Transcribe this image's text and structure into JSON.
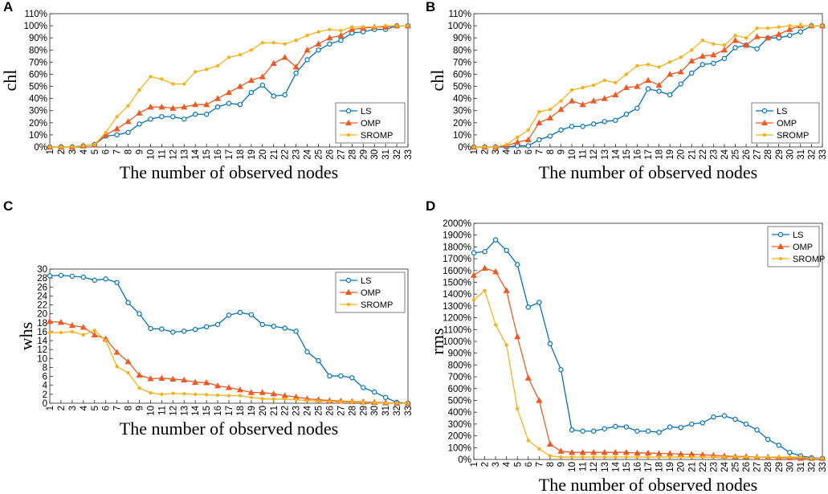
{
  "colors": {
    "LS": "#0072BD",
    "OMP": "#EE5A24",
    "SROMP": "#F5B21D"
  },
  "chart_data": [
    {
      "panel": "A",
      "type": "line",
      "xlabel": "The number of observed nodes",
      "ylabel": "chl",
      "x": [
        1,
        2,
        3,
        4,
        5,
        6,
        7,
        8,
        9,
        10,
        11,
        12,
        13,
        14,
        15,
        16,
        17,
        18,
        19,
        20,
        21,
        22,
        23,
        24,
        25,
        26,
        27,
        28,
        29,
        30,
        31,
        32,
        33
      ],
      "ylim": [
        0,
        110
      ],
      "yticks": [
        0,
        10,
        20,
        30,
        40,
        50,
        60,
        70,
        80,
        90,
        100,
        110
      ],
      "ytick_labels": [
        "0%",
        "10%",
        "20%",
        "30%",
        "40%",
        "50%",
        "60%",
        "70%",
        "80%",
        "90%",
        "100%",
        "110%"
      ],
      "legend_position": "bottom-right",
      "series": [
        {
          "name": "LS",
          "marker": "circle",
          "values": [
            0,
            0,
            0,
            1,
            2,
            9,
            10,
            12,
            19,
            23,
            25,
            25,
            23,
            27,
            27,
            33,
            36,
            35,
            45,
            51,
            42,
            43,
            61,
            72,
            80,
            85,
            88,
            94,
            95,
            97,
            97,
            100,
            100
          ]
        },
        {
          "name": "OMP",
          "marker": "triangle",
          "values": [
            0,
            0,
            0,
            1,
            2,
            10,
            15,
            21,
            28,
            33,
            33,
            32,
            33,
            35,
            35,
            40,
            45,
            50,
            55,
            58,
            69,
            74,
            66,
            80,
            85,
            90,
            92,
            97,
            98,
            99,
            99,
            100,
            100
          ]
        },
        {
          "name": "SROMP",
          "marker": "dot",
          "values": [
            0,
            0,
            0,
            1,
            2,
            12,
            25,
            34,
            47,
            58,
            56,
            52,
            52,
            62,
            64,
            67,
            74,
            76,
            80,
            86,
            86,
            85,
            88,
            92,
            95,
            97,
            96,
            99,
            99,
            99,
            100,
            100,
            100
          ]
        }
      ]
    },
    {
      "panel": "B",
      "type": "line",
      "xlabel": "The number of observed nodes",
      "ylabel": "chl",
      "x": [
        1,
        2,
        3,
        4,
        5,
        6,
        7,
        8,
        9,
        10,
        11,
        12,
        13,
        14,
        15,
        16,
        17,
        18,
        19,
        20,
        21,
        22,
        23,
        24,
        25,
        26,
        27,
        28,
        29,
        30,
        31,
        32,
        33
      ],
      "ylim": [
        0,
        110
      ],
      "yticks": [
        0,
        10,
        20,
        30,
        40,
        50,
        60,
        70,
        80,
        90,
        100,
        110
      ],
      "ytick_labels": [
        "0%",
        "10%",
        "20%",
        "30%",
        "40%",
        "50%",
        "60%",
        "70%",
        "80%",
        "90%",
        "100%",
        "110%"
      ],
      "legend_position": "bottom-right",
      "series": [
        {
          "name": "LS",
          "marker": "circle",
          "values": [
            0,
            0,
            0,
            0,
            1,
            1,
            6,
            9,
            14,
            17,
            17,
            19,
            21,
            22,
            27,
            32,
            48,
            46,
            43,
            52,
            61,
            68,
            69,
            73,
            82,
            84,
            81,
            90,
            90,
            92,
            95,
            100,
            100
          ]
        },
        {
          "name": "OMP",
          "marker": "triangle",
          "values": [
            0,
            0,
            0,
            1,
            4,
            6,
            20,
            24,
            31,
            38,
            35,
            38,
            40,
            43,
            49,
            50,
            55,
            51,
            60,
            62,
            71,
            75,
            76,
            80,
            88,
            84,
            91,
            90,
            93,
            97,
            100,
            100,
            100
          ]
        },
        {
          "name": "SROMP",
          "marker": "dot",
          "values": [
            0,
            0,
            0,
            2,
            8,
            14,
            29,
            31,
            38,
            47,
            49,
            51,
            55,
            53,
            60,
            67,
            68,
            66,
            70,
            74,
            80,
            88,
            85,
            84,
            92,
            90,
            98,
            98,
            99,
            100,
            100,
            100,
            100
          ]
        }
      ]
    },
    {
      "panel": "C",
      "type": "line",
      "xlabel": "The number of observed nodes",
      "ylabel": "whs",
      "x": [
        1,
        2,
        3,
        4,
        5,
        6,
        7,
        8,
        9,
        10,
        11,
        12,
        13,
        14,
        15,
        16,
        17,
        18,
        19,
        20,
        21,
        22,
        23,
        24,
        25,
        26,
        27,
        28,
        29,
        30,
        31,
        32,
        33
      ],
      "ylim": [
        0,
        30
      ],
      "yticks": [
        0,
        2,
        4,
        6,
        8,
        10,
        12,
        14,
        16,
        18,
        20,
        22,
        24,
        26,
        28,
        30
      ],
      "ytick_labels": [
        "0",
        "2",
        "4",
        "6",
        "8",
        "10",
        "12",
        "14",
        "16",
        "18",
        "20",
        "22",
        "24",
        "26",
        "28",
        "30"
      ],
      "legend_position": "top-right",
      "series": [
        {
          "name": "LS",
          "marker": "circle",
          "values": [
            28.5,
            28.6,
            28.4,
            28.2,
            27.5,
            27.8,
            27,
            22.5,
            20,
            16.7,
            16.6,
            15.9,
            16.1,
            16.5,
            17.1,
            17.6,
            19.7,
            20.3,
            19.8,
            17.6,
            17.2,
            16.8,
            16.1,
            11.5,
            9.5,
            6.1,
            6.1,
            5.7,
            3.5,
            2.5,
            1.3,
            0.2,
            0
          ]
        },
        {
          "name": "OMP",
          "marker": "triangle",
          "values": [
            18.3,
            18.1,
            17.4,
            17,
            15.3,
            14.4,
            11.4,
            9.3,
            6.3,
            5.5,
            5.6,
            5.4,
            5.2,
            4.7,
            4.6,
            3.9,
            3.5,
            3,
            2.4,
            2.4,
            2.1,
            1.7,
            1.4,
            1,
            0.8,
            0.6,
            0.5,
            0.4,
            0.3,
            0.2,
            0.1,
            0,
            0
          ]
        },
        {
          "name": "SROMP",
          "marker": "dot",
          "values": [
            15.8,
            15.8,
            16,
            15.3,
            16.3,
            14,
            8.2,
            6.8,
            3.4,
            2.3,
            2,
            2.2,
            2.1,
            2,
            1.9,
            1.8,
            1.7,
            1.7,
            1.3,
            1,
            0.9,
            0.9,
            0.8,
            0.6,
            0.5,
            0.4,
            0.3,
            0.3,
            0.2,
            0.1,
            0,
            0,
            0
          ]
        }
      ]
    },
    {
      "panel": "D",
      "type": "line",
      "xlabel": "The number of observed nodes",
      "ylabel": "rms",
      "x": [
        1,
        2,
        3,
        4,
        5,
        6,
        7,
        8,
        9,
        10,
        11,
        12,
        13,
        14,
        15,
        16,
        17,
        18,
        19,
        20,
        21,
        22,
        23,
        24,
        25,
        26,
        27,
        28,
        29,
        30,
        31,
        32,
        33
      ],
      "ylim": [
        0,
        2000
      ],
      "yticks": [
        0,
        100,
        200,
        300,
        400,
        500,
        600,
        700,
        800,
        900,
        1000,
        1100,
        1200,
        1300,
        1400,
        1500,
        1600,
        1700,
        1800,
        1900,
        2000
      ],
      "ytick_labels": [
        "0%",
        "100%",
        "200%",
        "300%",
        "400%",
        "500%",
        "600%",
        "700%",
        "800%",
        "900%",
        "1000%",
        "1100%",
        "1200%",
        "1300%",
        "1400%",
        "1500%",
        "1600%",
        "1700%",
        "1800%",
        "1900%",
        "2000%"
      ],
      "legend_position": "top-right",
      "series": [
        {
          "name": "LS",
          "marker": "circle",
          "values": [
            1750,
            1760,
            1860,
            1770,
            1650,
            1290,
            1330,
            980,
            760,
            250,
            240,
            240,
            260,
            280,
            275,
            240,
            240,
            230,
            275,
            270,
            300,
            310,
            360,
            370,
            340,
            300,
            250,
            170,
            120,
            60,
            30,
            15,
            10
          ]
        },
        {
          "name": "OMP",
          "marker": "triangle",
          "values": [
            1560,
            1620,
            1590,
            1430,
            1040,
            690,
            500,
            130,
            70,
            60,
            60,
            60,
            60,
            60,
            60,
            55,
            55,
            50,
            50,
            45,
            45,
            40,
            35,
            30,
            25,
            25,
            20,
            20,
            15,
            15,
            10,
            10,
            10
          ]
        },
        {
          "name": "SROMP",
          "marker": "dot",
          "values": [
            1350,
            1430,
            1140,
            970,
            430,
            160,
            90,
            30,
            20,
            20,
            20,
            20,
            20,
            20,
            20,
            20,
            20,
            20,
            20,
            20,
            20,
            20,
            20,
            20,
            20,
            20,
            20,
            20,
            20,
            20,
            20,
            10,
            10
          ]
        }
      ]
    }
  ]
}
